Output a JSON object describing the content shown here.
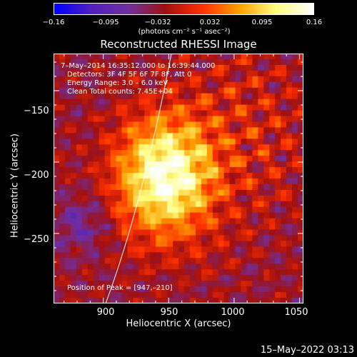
{
  "colorbar": {
    "ticks": [
      "−0.16",
      "−0.095",
      "−0.032",
      "0.032",
      "0.095",
      "0.16"
    ],
    "tick_values": [
      -0.16,
      -0.095,
      -0.032,
      0.032,
      0.095,
      0.16
    ],
    "units": "(photons cm⁻² s⁻¹ asec⁻²)",
    "colormap": [
      "#0000ff",
      "#5020c0",
      "#7030a0",
      "#a01010",
      "#ff3000",
      "#ffa000",
      "#ffff80",
      "#ffffff"
    ]
  },
  "chart_data": {
    "type": "heatmap",
    "title": "Reconstructed RHESSI Image",
    "xlabel": "Heliocentric X (arcsec)",
    "ylabel": "Heliocentric Y (arcsec)",
    "xlim": [
      862,
      1053
    ],
    "ylim": [
      -299,
      -124
    ],
    "xticks": [
      "900",
      "950",
      "1000",
      "1050"
    ],
    "yticks": [
      "−150",
      "−200",
      "−250"
    ],
    "xtick_values": [
      900,
      950,
      1000,
      1050
    ],
    "ytick_values": [
      -150,
      -200,
      -250
    ],
    "annotations": [
      "7–May–2014 16:35:12.000 to 16:39:44.000",
      "Detectors: 3F 4F 5F 6F 7F 8F, Att 0",
      "Energy Range: 3.0 – 6.0 keV",
      "Clean     Total counts: 7.45E+04"
    ],
    "peak_label": "Position of Peak = [947,–210]",
    "peak": [
      947,
      -210
    ],
    "vmin": -0.16,
    "vmax": 0.16
  },
  "footer": {
    "date": "15–May–2022 03:13"
  }
}
